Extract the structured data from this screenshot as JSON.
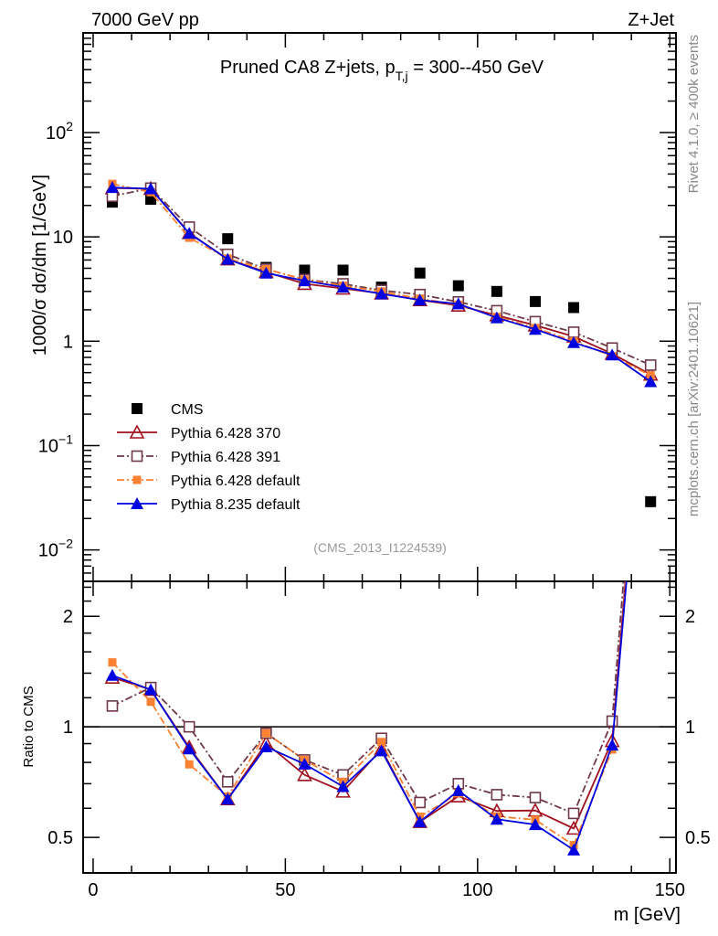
{
  "header": {
    "left": "7000 GeV pp",
    "right": "Z+Jet"
  },
  "side_labels": {
    "top": "Rivet 4.1.0, ≥ 400k events",
    "bottom": "mcplots.cern.ch [arXiv:2401.10621]"
  },
  "chart_data": {
    "type": "scatter",
    "title": "Pruned CA8 Z+jets, p",
    "title_sub": "T,j",
    "title_tail": " = 300--450 GeV",
    "analysis_id": "(CMS_2013_I1224539)",
    "xlabel": "m [GeV]",
    "ylabel": "1000/σ  dσ/dm [1/GeV]",
    "ratio_ylabel": "Ratio to CMS",
    "xlim": [
      -2.6,
      151.6
    ],
    "ylim": [
      0.005,
      900
    ],
    "yscale": "log",
    "ratio_ylim": [
      0.4,
      2.49
    ],
    "xticks": [
      0,
      50,
      100,
      150
    ],
    "yticks": [
      {
        "v": 0.01,
        "b": "10",
        "e": "−2"
      },
      {
        "v": 0.1,
        "b": "10",
        "e": "−1"
      },
      {
        "v": 1,
        "b": "1",
        "e": ""
      },
      {
        "v": 10,
        "b": "10",
        "e": ""
      },
      {
        "v": 100,
        "b": "10",
        "e": "2"
      }
    ],
    "ratio_yticks": [
      {
        "v": 0.5,
        "l": "0.5"
      },
      {
        "v": 1,
        "l": "1"
      },
      {
        "v": 2,
        "l": "2"
      }
    ],
    "x": [
      5,
      15,
      25,
      35,
      45,
      55,
      65,
      75,
      85,
      95,
      105,
      115,
      125,
      135,
      145
    ],
    "series": [
      {
        "name": "CMS",
        "color": "#000000",
        "marker": "square-filled",
        "line": "none",
        "values": [
          21.5,
          22.9,
          12.4,
          9.6,
          5.1,
          4.8,
          4.8,
          3.3,
          4.5,
          3.4,
          3.0,
          2.4,
          2.1,
          0.83,
          0.029
        ]
      },
      {
        "name": "Pythia 6.428 370",
        "color": "#a0101e",
        "marker": "triangle-open",
        "line": "solid",
        "values": [
          29.3,
          28.9,
          10.9,
          6.1,
          4.6,
          3.55,
          3.2,
          2.87,
          2.48,
          2.2,
          1.77,
          1.42,
          1.11,
          0.76,
          0.48
        ]
      },
      {
        "name": "Pythia 6.428 391",
        "color": "#6e3848",
        "marker": "square-open",
        "line": "dashdot",
        "values": [
          24.5,
          29.3,
          12.4,
          6.8,
          4.9,
          3.9,
          3.55,
          3.07,
          2.8,
          2.38,
          1.96,
          1.54,
          1.22,
          0.86,
          0.59
        ]
      },
      {
        "name": "Pythia 6.428 default",
        "color": "#ff8030",
        "marker": "square-small",
        "line": "dashdot",
        "values": [
          32.2,
          26.8,
          9.8,
          6.2,
          4.9,
          3.9,
          3.4,
          3.0,
          2.56,
          2.24,
          1.71,
          1.34,
          1.0,
          0.72,
          0.47
        ]
      },
      {
        "name": "Pythia 8.235 default",
        "color": "#0000e0",
        "marker": "triangle-filled",
        "line": "solid",
        "values": [
          29.7,
          28.9,
          10.8,
          6.1,
          4.5,
          3.8,
          3.3,
          2.84,
          2.48,
          2.28,
          1.68,
          1.3,
          0.97,
          0.74,
          0.41
        ]
      }
    ]
  }
}
